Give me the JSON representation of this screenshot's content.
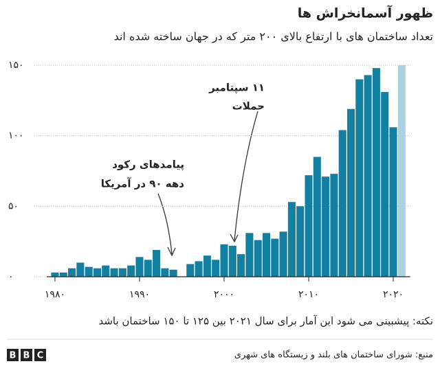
{
  "chart_data": {
    "type": "bar",
    "title": "ظهور آسمانخراش ها",
    "subtitle": "تعداد ساختمان های با ارتفاع بالای ۲۰۰ متر که در جهان ساخته شده اند",
    "x": [
      1980,
      1981,
      1982,
      1983,
      1984,
      1985,
      1986,
      1987,
      1988,
      1989,
      1990,
      1991,
      1992,
      1993,
      1994,
      1995,
      1996,
      1997,
      1998,
      1999,
      2000,
      2001,
      2002,
      2003,
      2004,
      2005,
      2006,
      2007,
      2008,
      2009,
      2010,
      2011,
      2012,
      2013,
      2014,
      2015,
      2016,
      2017,
      2018,
      2019,
      2020,
      2021
    ],
    "values": [
      3,
      3,
      6,
      10,
      7,
      6,
      8,
      6,
      6,
      8,
      14,
      12,
      19,
      6,
      5,
      0,
      9,
      11,
      15,
      12,
      23,
      22,
      16,
      31,
      26,
      31,
      27,
      32,
      53,
      50,
      72,
      85,
      71,
      73,
      104,
      119,
      140,
      143,
      148,
      131,
      106,
      150
    ],
    "colors": [
      "#1380a1",
      "#1380a1",
      "#1380a1",
      "#1380a1",
      "#1380a1",
      "#1380a1",
      "#1380a1",
      "#1380a1",
      "#1380a1",
      "#1380a1",
      "#1380a1",
      "#1380a1",
      "#1380a1",
      "#1380a1",
      "#1380a1",
      "#1380a1",
      "#1380a1",
      "#1380a1",
      "#1380a1",
      "#1380a1",
      "#1380a1",
      "#1380a1",
      "#1380a1",
      "#1380a1",
      "#1380a1",
      "#1380a1",
      "#1380a1",
      "#1380a1",
      "#1380a1",
      "#1380a1",
      "#1380a1",
      "#1380a1",
      "#1380a1",
      "#1380a1",
      "#1380a1",
      "#1380a1",
      "#1380a1",
      "#1380a1",
      "#1380a1",
      "#1380a1",
      "#1380a1",
      "#a9d3e0"
    ],
    "xlim": [
      1978.5,
      2022
    ],
    "xticks": [
      {
        "value": 1980,
        "label": "۱۹۸۰"
      },
      {
        "value": 1990,
        "label": "۱۹۹۰"
      },
      {
        "value": 2000,
        "label": "۲۰۰۰"
      },
      {
        "value": 2010,
        "label": "۲۰۱۰"
      },
      {
        "value": 2020,
        "label": "۲۰۲۰"
      }
    ],
    "ylim": [
      0,
      150
    ],
    "yticks": [
      {
        "value": 0,
        "label": "۰"
      },
      {
        "value": 50,
        "label": "۵۰"
      },
      {
        "value": 100,
        "label": "۱۰۰"
      },
      {
        "value": 150,
        "label": "۱۵۰"
      }
    ],
    "grid": true,
    "annotations": [
      {
        "lines": [
          "۱۱ سپتامبر",
          "حملات"
        ]
      },
      {
        "lines": [
          "پیامدهای رکود",
          "دهه ۹۰ در آمریکا"
        ]
      }
    ],
    "note": "نکته: پیشبینی می شود این آمار برای سال ۲۰۲۱ بین ۱۲۵ تا ۱۵۰ ساختمان باشد",
    "source": "منبع: شورای ساختمان های بلند و زیستگاه های شهری",
    "logo": [
      "B",
      "B",
      "C"
    ]
  }
}
